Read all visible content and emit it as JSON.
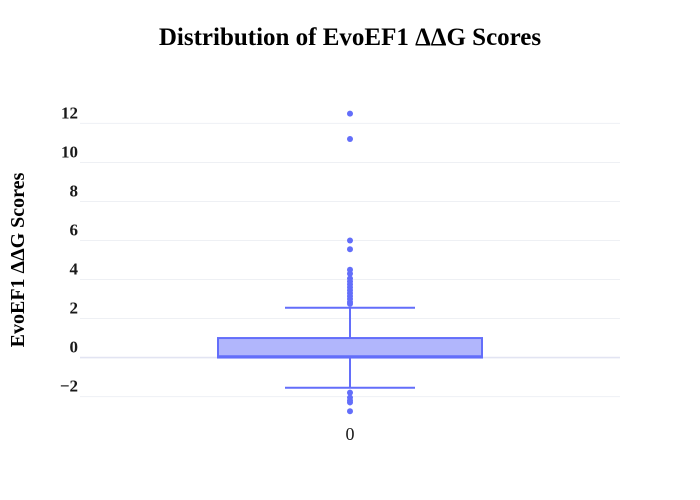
{
  "chart_data": {
    "type": "box",
    "title": "Distribution of EvoEF1 ΔΔG Scores",
    "xlabel": "",
    "ylabel": "EvoEF1 ΔΔG Scores",
    "categories": [
      "0"
    ],
    "ylim": [
      -3.2,
      13.2
    ],
    "yticks": [
      -2,
      0,
      2,
      4,
      6,
      8,
      10,
      12
    ],
    "ytick_labels": [
      "−2",
      "0",
      "2",
      "4",
      "6",
      "8",
      "10",
      "12"
    ],
    "grid": true,
    "color": "#636efa",
    "fill_color": "#b1b6fc",
    "series": [
      {
        "category": "0",
        "lower_fence": -1.55,
        "q1": 0.0,
        "median": 0.07,
        "q3": 1.0,
        "upper_fence": 2.55,
        "outliers": [
          12.5,
          11.2,
          6.0,
          5.55,
          4.5,
          4.3,
          4.05,
          3.9,
          3.75,
          3.6,
          3.45,
          3.3,
          3.15,
          3.0,
          2.85,
          2.75,
          -1.8,
          -2.05,
          -2.2,
          -2.3,
          -2.75
        ]
      }
    ]
  }
}
